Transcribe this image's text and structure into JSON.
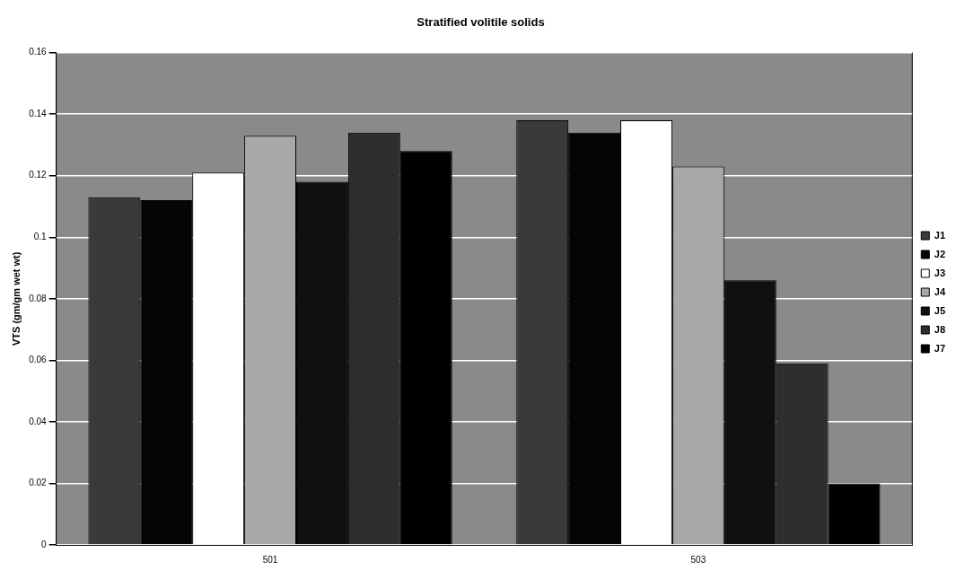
{
  "chart_data": {
    "type": "bar",
    "title": "Stratified volitile solids",
    "ylabel": "VTS (gm/gm wet wt)",
    "categories": [
      "501",
      "503"
    ],
    "series": [
      {
        "name": "J1",
        "color": "#3a3a3a",
        "values": [
          0.113,
          0.138
        ]
      },
      {
        "name": "J2",
        "color": "#050505",
        "values": [
          0.112,
          0.134
        ]
      },
      {
        "name": "J3",
        "color": "#ffffff",
        "values": [
          0.121,
          0.138
        ]
      },
      {
        "name": "J4",
        "color": "#a8a8a8",
        "values": [
          0.133,
          0.123
        ]
      },
      {
        "name": "J5",
        "color": "#101010",
        "values": [
          0.118,
          0.086
        ]
      },
      {
        "name": "J8",
        "color": "#2e2e2e",
        "values": [
          0.134,
          0.059
        ]
      },
      {
        "name": "J7",
        "color": "#000000",
        "values": [
          0.128,
          0.02
        ]
      }
    ],
    "ylim": [
      0,
      0.16
    ],
    "yticks": [
      0,
      0.02,
      0.04,
      0.06,
      0.08,
      {
        "value": 0.1,
        "label": "0.1"
      },
      0.12,
      0.14,
      0.16
    ],
    "grid": "y",
    "legend": "right"
  }
}
